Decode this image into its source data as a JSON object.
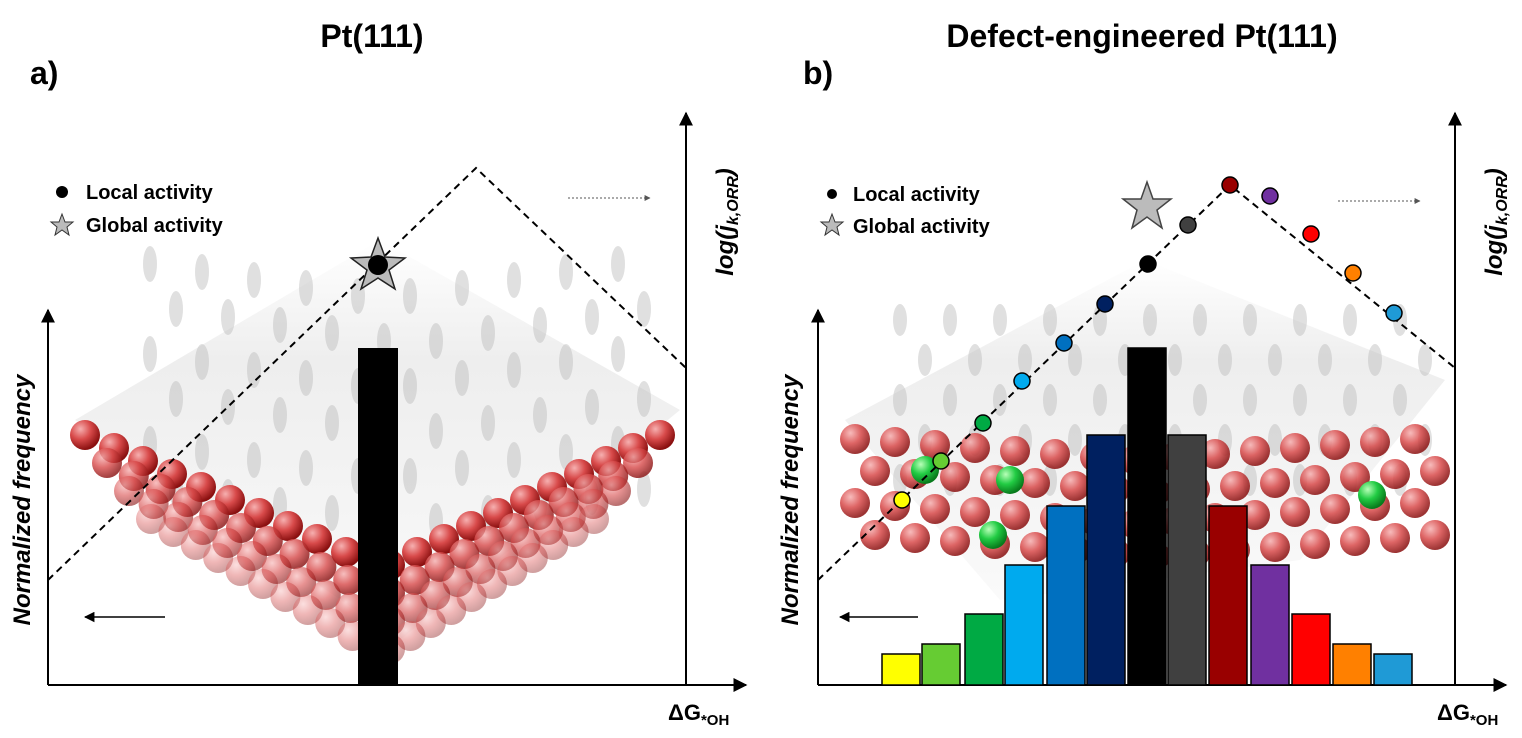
{
  "panels": [
    {
      "label": "a)",
      "title": "Pt(111)",
      "legend": [
        "Local activity",
        "Global activity"
      ],
      "y_label": "Normalized frequency",
      "y2_label": {
        "main": "log(j",
        "sub": "k,ORR",
        "end": ")"
      },
      "x_label": {
        "main": "ΔG",
        "sub": "*OH"
      }
    },
    {
      "label": "b)",
      "title": "Defect-engineered Pt(111)",
      "legend": [
        "Local activity",
        "Global activity"
      ],
      "y_label": "Normalized frequency",
      "y2_label": {
        "main": "log(j",
        "sub": "k,ORR",
        "end": ")"
      },
      "x_label": {
        "main": "ΔG",
        "sub": "*OH"
      }
    }
  ]
}
